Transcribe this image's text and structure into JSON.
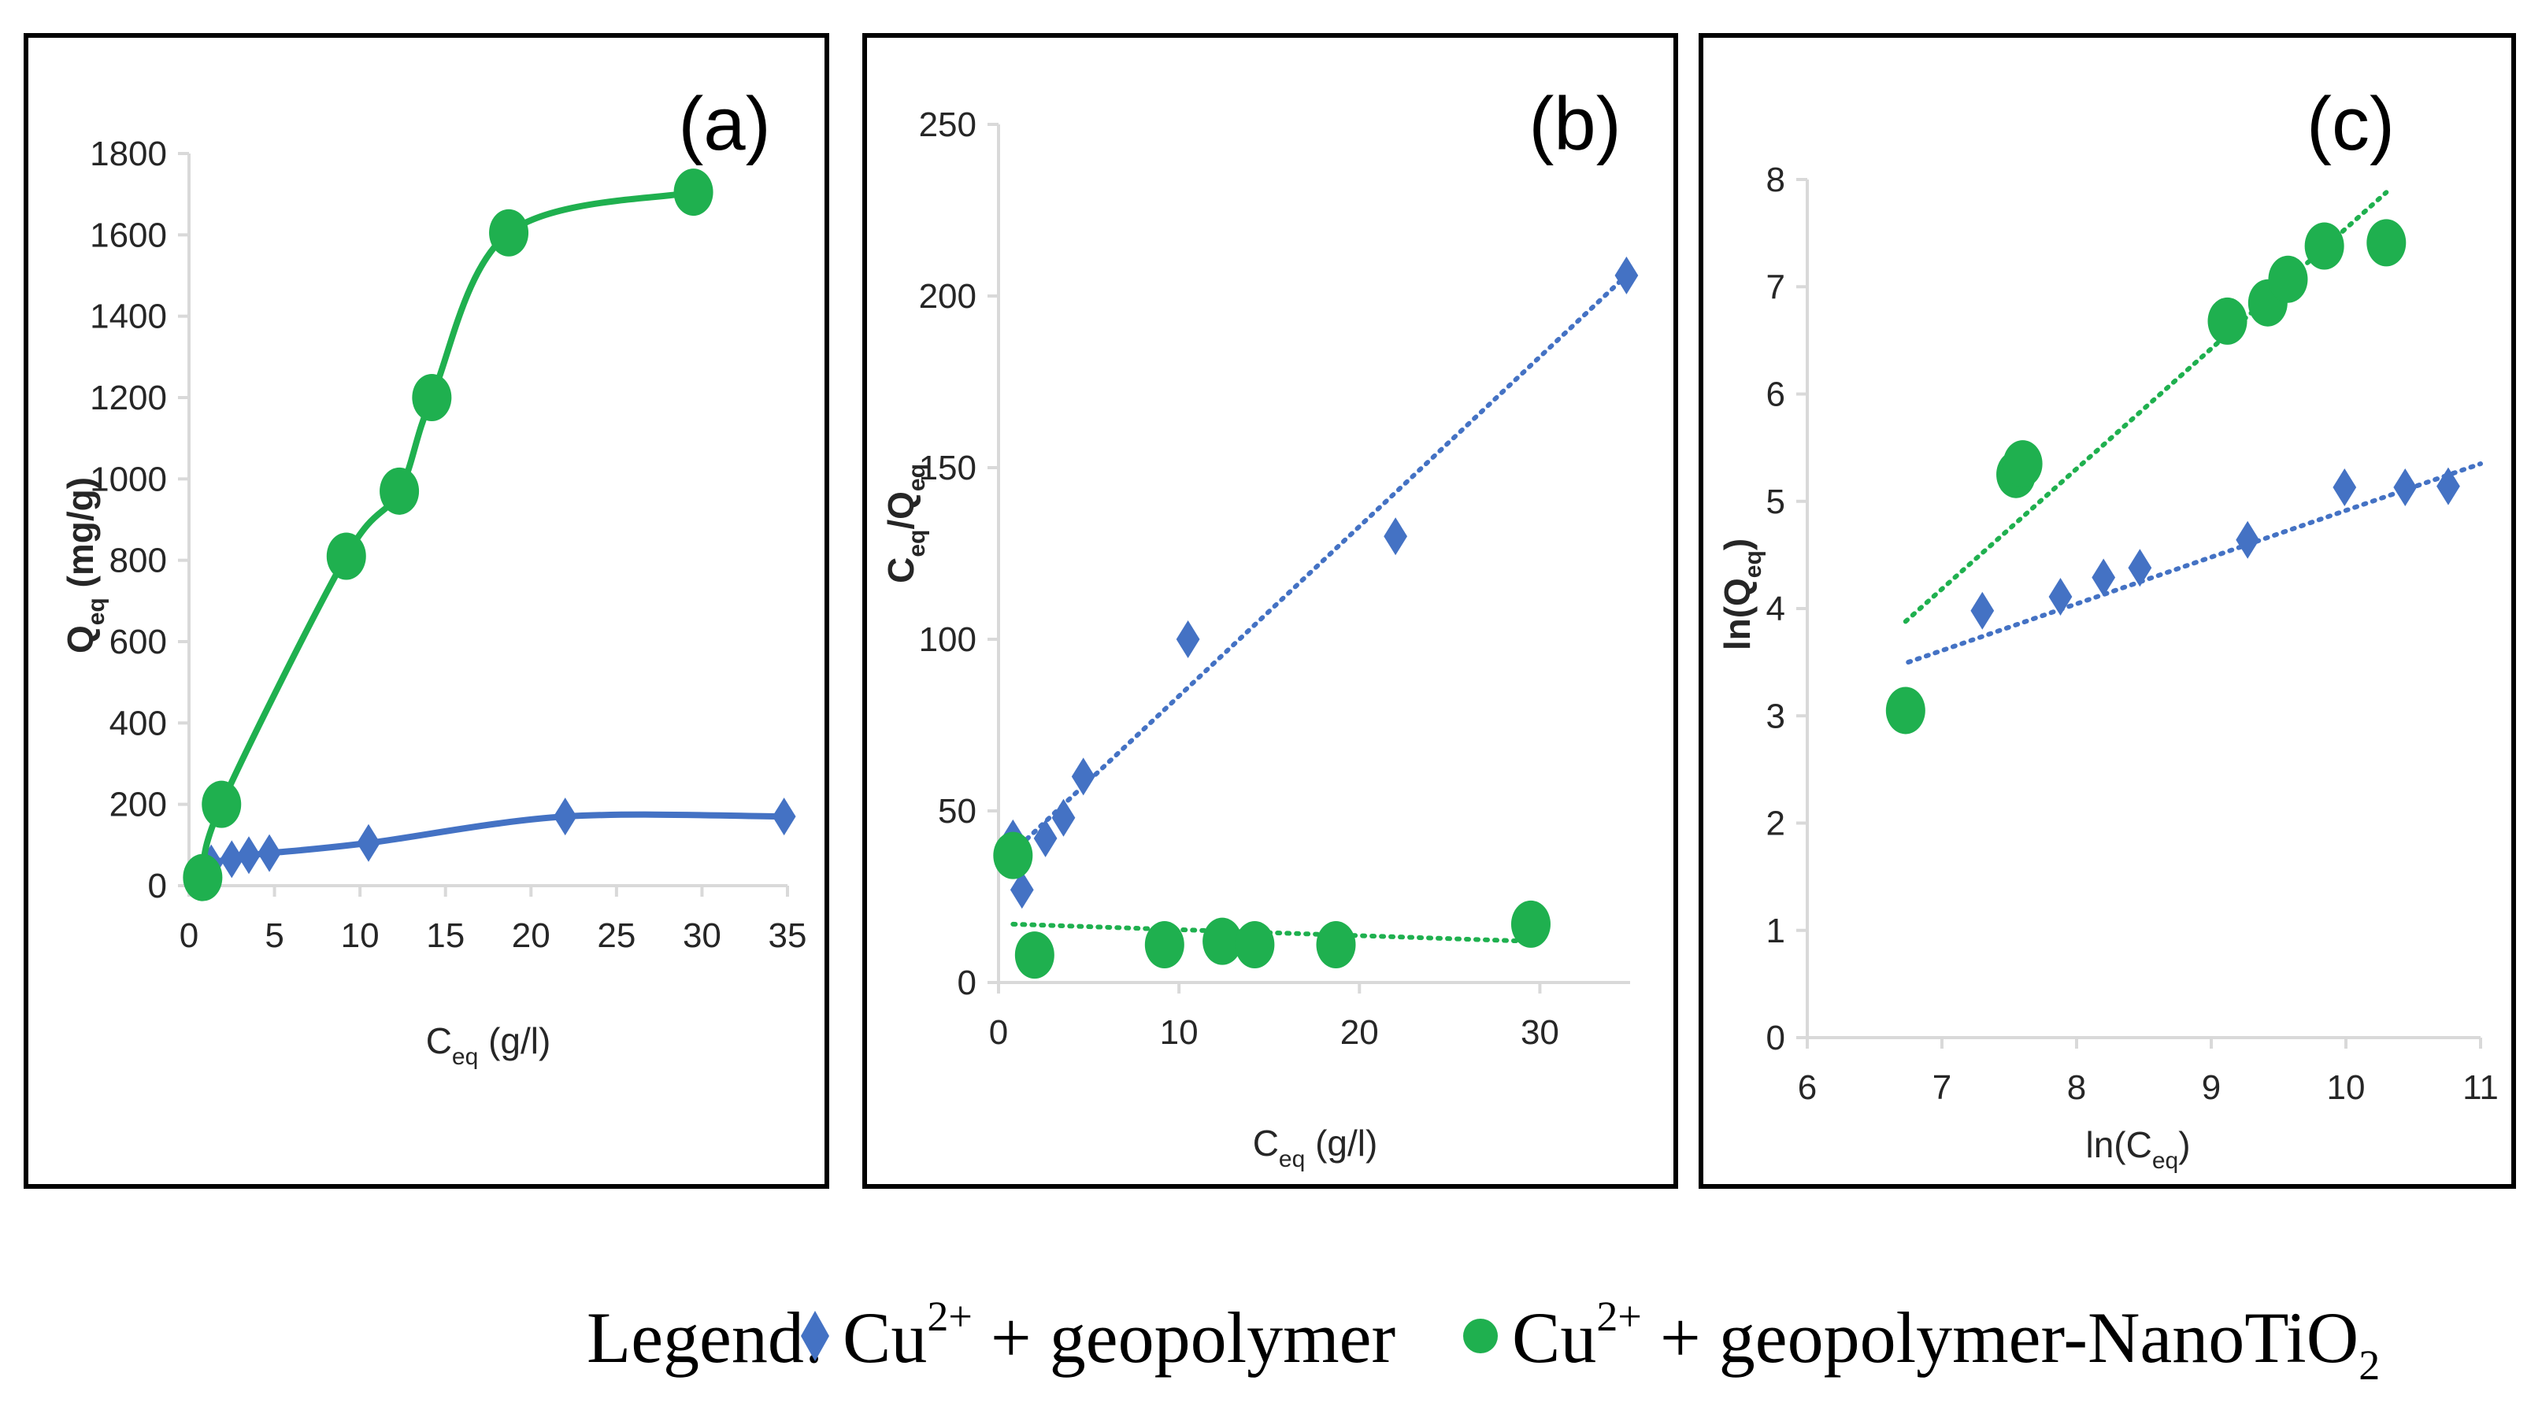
{
  "colors": {
    "series1": "#4472c4",
    "series2": "#1fb04f",
    "frame": "#000000",
    "axis": "#d9d9d9"
  },
  "legend": {
    "title": "Legend:",
    "series1": {
      "base": "Cu",
      "sup": "2+",
      "rest": " + geopolymer"
    },
    "series2": {
      "base": "Cu",
      "sup": "2+",
      "rest": " + geopolymer-NanoTiO",
      "sub": "2"
    }
  },
  "chart_data": [
    {
      "id": "a",
      "panel_label": "(a)",
      "type": "line",
      "xlabel": {
        "base": "C",
        "sub": "eq",
        "rest": " (g/l)"
      },
      "ylabel": {
        "base": "Q",
        "sub": "eq",
        "rest": " (mg/g)"
      },
      "xlim": [
        0,
        35
      ],
      "ylim": [
        0,
        1800
      ],
      "xticks": [
        0,
        5,
        10,
        15,
        20,
        25,
        30,
        35
      ],
      "yticks": [
        0,
        200,
        400,
        600,
        800,
        1000,
        1200,
        1400,
        1600,
        1800
      ],
      "series": [
        {
          "name": "Cu2+ + geopolymer",
          "marker": "diamond",
          "smooth": true,
          "x": [
            0.8,
            1.3,
            2.5,
            3.5,
            4.7,
            10.5,
            22,
            34.8
          ],
          "y": [
            25,
            55,
            65,
            75,
            80,
            105,
            170,
            170
          ]
        },
        {
          "name": "Cu2+ + geopolymer-NanoTiO2",
          "marker": "circle",
          "smooth": true,
          "x": [
            0.8,
            1.9,
            9.2,
            12.3,
            14.2,
            18.7,
            29.5
          ],
          "y": [
            20,
            200,
            810,
            970,
            1200,
            1605,
            1705
          ]
        }
      ]
    },
    {
      "id": "b",
      "panel_label": "(b)",
      "type": "scatter",
      "xlabel": {
        "base": "C",
        "sub": "eq",
        "rest": " (g/l)"
      },
      "ylabel": {
        "base": "C",
        "sub": "eq",
        "mid": "/Q",
        "sub2": "eq"
      },
      "xlim": [
        0,
        35
      ],
      "ylim": [
        0,
        250
      ],
      "xticks": [
        0,
        10,
        20,
        30
      ],
      "yticks": [
        0,
        50,
        100,
        150,
        200,
        250
      ],
      "series": [
        {
          "name": "Cu2+ + geopolymer",
          "marker": "diamond",
          "x": [
            0.8,
            1.3,
            2.6,
            3.6,
            4.7,
            10.5,
            22,
            34.8
          ],
          "y": [
            42,
            27,
            42,
            48,
            60,
            100,
            130,
            206
          ],
          "trendline": {
            "x": [
              0.8,
              34.8
            ],
            "y": [
              38,
              206
            ]
          }
        },
        {
          "name": "Cu2+ + geopolymer-NanoTiO2",
          "marker": "circle",
          "x": [
            0.8,
            2.0,
            9.2,
            12.4,
            14.2,
            18.7,
            29.5
          ],
          "y": [
            37,
            8,
            11,
            12,
            11,
            11,
            17
          ],
          "trendline": {
            "x": [
              0.8,
              29.5
            ],
            "y": [
              17,
              12
            ]
          }
        }
      ]
    },
    {
      "id": "c",
      "panel_label": "(c)",
      "type": "scatter",
      "xlabel": {
        "base": "ln(C",
        "sub": "eq",
        "rest": ")"
      },
      "ylabel": {
        "base": "ln(Q",
        "sub": "eq",
        "rest": ")"
      },
      "xlim": [
        6,
        11
      ],
      "ylim": [
        0,
        8
      ],
      "xticks": [
        6,
        7,
        8,
        9,
        10,
        11
      ],
      "yticks": [
        0,
        1,
        2,
        3,
        4,
        5,
        6,
        7,
        8
      ],
      "series": [
        {
          "name": "Cu2+ + geopolymer",
          "marker": "diamond",
          "x": [
            7.3,
            7.88,
            8.2,
            8.47,
            9.27,
            9.99,
            10.44,
            10.76
          ],
          "y": [
            3.98,
            4.11,
            4.29,
            4.38,
            4.64,
            5.13,
            5.13,
            5.14
          ],
          "trendline": {
            "x": [
              6.75,
              11.0
            ],
            "y": [
              3.5,
              5.35
            ]
          }
        },
        {
          "name": "Cu2+ + geopolymer-NanoTiO2",
          "marker": "circle",
          "x": [
            6.73,
            7.55,
            7.6,
            9.12,
            9.42,
            9.57,
            9.84,
            10.3
          ],
          "y": [
            3.05,
            5.25,
            5.35,
            6.68,
            6.85,
            7.07,
            7.38,
            7.41
          ],
          "trendline": {
            "x": [
              6.73,
              10.3
            ],
            "y": [
              3.88,
              7.88
            ]
          }
        }
      ]
    }
  ]
}
